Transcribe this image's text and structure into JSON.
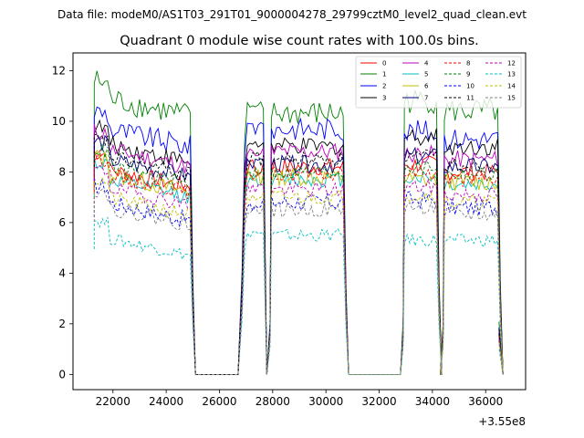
{
  "chart_data": {
    "type": "line",
    "suptitle": "Data file: modeM0/AS1T03_291T01_9000004278_29799cztM0_level2_quad_clean.evt",
    "title": "Quadrant 0 module wise count rates with 100.0s bins.",
    "xlabel": "",
    "ylabel": "",
    "x_offset_label": "+3.55e8",
    "xlim": [
      20500,
      37500
    ],
    "ylim": [
      -0.6,
      12.7
    ],
    "xticks": [
      22000,
      24000,
      26000,
      28000,
      30000,
      32000,
      34000,
      36000
    ],
    "xtick_labels": [
      "22000",
      "24000",
      "26000",
      "28000",
      "30000",
      "32000",
      "34000",
      "36000"
    ],
    "yticks": [
      0,
      2,
      4,
      6,
      8,
      10,
      12
    ],
    "ytick_labels": [
      "0",
      "2",
      "4",
      "6",
      "8",
      "10",
      "12"
    ],
    "grid": false,
    "legend_position": "top-right",
    "legend_columns": 4,
    "segments": [
      [
        21300,
        24900
      ],
      [
        27950,
        30650
      ],
      [
        32950,
        34150
      ],
      [
        34450,
        36450
      ]
    ],
    "dips": [
      {
        "x": 27800,
        "value": 0.5
      },
      {
        "x": 34200,
        "value": 1.0
      }
    ],
    "gaps": [
      [
        25100,
        26800
      ],
      [
        31000,
        32700
      ],
      [
        34250,
        34350
      ]
    ],
    "series": [
      {
        "name": "0",
        "color": "#ff0000",
        "dash": "solid",
        "level": 8.2,
        "segment_levels": [
          8.2,
          8.2,
          8.3,
          8.0
        ],
        "noise": 0.35
      },
      {
        "name": "1",
        "color": "#008000",
        "dash": "solid",
        "level": 10.8,
        "segment_levels": [
          11.0,
          10.3,
          10.8,
          10.4
        ],
        "noise": 0.5
      },
      {
        "name": "2",
        "color": "#0000ff",
        "dash": "solid",
        "level": 9.8,
        "segment_levels": [
          9.8,
          9.7,
          9.6,
          9.3
        ],
        "noise": 0.45
      },
      {
        "name": "3",
        "color": "#000000",
        "dash": "solid",
        "level": 9.2,
        "segment_levels": [
          9.2,
          9.0,
          9.4,
          9.0
        ],
        "noise": 0.35
      },
      {
        "name": "4",
        "color": "#bf00bf",
        "dash": "solid",
        "level": 8.9,
        "segment_levels": [
          9.0,
          8.8,
          8.7,
          8.5
        ],
        "noise": 0.35
      },
      {
        "name": "5",
        "color": "#00bfbf",
        "dash": "solid",
        "level": 7.8,
        "segment_levels": [
          7.8,
          7.7,
          7.8,
          7.5
        ],
        "noise": 0.3
      },
      {
        "name": "6",
        "color": "#bfbf00",
        "dash": "solid",
        "level": 7.9,
        "segment_levels": [
          8.0,
          7.8,
          7.7,
          7.6
        ],
        "noise": 0.35
      },
      {
        "name": "7",
        "color": "#000080",
        "dash": "solid",
        "level": 8.4,
        "segment_levels": [
          8.6,
          8.3,
          8.6,
          8.2
        ],
        "noise": 0.35
      },
      {
        "name": "8",
        "color": "#ff0000",
        "dash": "dashed",
        "level": 8.0,
        "segment_levels": [
          8.0,
          7.9,
          8.0,
          7.7
        ],
        "noise": 0.3
      },
      {
        "name": "9",
        "color": "#008000",
        "dash": "dashed",
        "level": 8.2,
        "segment_levels": [
          8.3,
          8.0,
          8.2,
          7.9
        ],
        "noise": 0.3
      },
      {
        "name": "10",
        "color": "#0000ff",
        "dash": "dashed",
        "level": 6.8,
        "segment_levels": [
          6.9,
          6.8,
          6.9,
          6.6
        ],
        "noise": 0.35
      },
      {
        "name": "11",
        "color": "#000000",
        "dash": "dashed",
        "level": 8.6,
        "segment_levels": [
          8.7,
          8.5,
          8.6,
          8.3
        ],
        "noise": 0.3
      },
      {
        "name": "12",
        "color": "#bf00bf",
        "dash": "dashed",
        "level": 7.4,
        "segment_levels": [
          7.5,
          7.3,
          7.4,
          7.1
        ],
        "noise": 0.3
      },
      {
        "name": "13",
        "color": "#00bfbf",
        "dash": "dashed",
        "level": 5.4,
        "segment_levels": [
          5.5,
          5.5,
          5.3,
          5.3
        ],
        "noise": 0.25
      },
      {
        "name": "14",
        "color": "#bfbf00",
        "dash": "dashed",
        "level": 7.0,
        "segment_levels": [
          7.1,
          7.0,
          7.1,
          6.8
        ],
        "noise": 0.3
      },
      {
        "name": "15",
        "color": "#808080",
        "dash": "dashed",
        "level": 6.6,
        "segment_levels": [
          6.7,
          6.5,
          6.6,
          6.3
        ],
        "noise": 0.3
      }
    ]
  }
}
